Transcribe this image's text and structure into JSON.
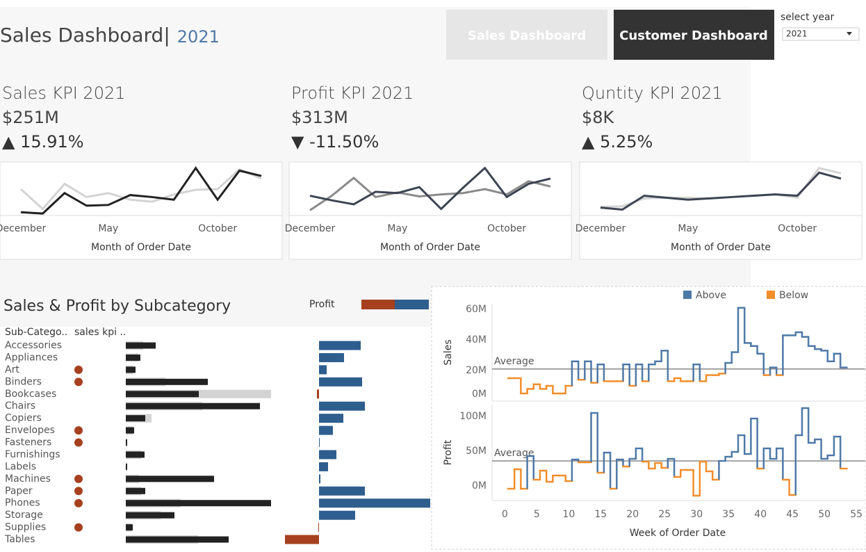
{
  "header": {
    "title": "Sales Dashboard|",
    "subtitle": "2021"
  },
  "nav": [
    "Sales Dashboard",
    "Customer Dashboard"
  ],
  "year_select": {
    "label": "select year",
    "value": "2021"
  },
  "chart_data": [
    {
      "type": "line",
      "title": "Sales KPI 2021",
      "kpi": "$251M",
      "change": "▲ 15.91%",
      "categories": [
        "December",
        null,
        null,
        null,
        "May",
        null,
        null,
        null,
        null,
        "October",
        null,
        null
      ],
      "xlabel": "Month of Order Date",
      "ylim": [
        0,
        78
      ],
      "series": [
        {
          "color": "#d3d3d3",
          "values": [
            40,
            10,
            48,
            28,
            34,
            24,
            21,
            32,
            39,
            40,
            70,
            56
          ]
        },
        {
          "color": "#222222",
          "values": [
            5,
            3,
            34,
            15,
            16,
            31,
            28,
            24,
            72,
            24,
            68,
            60
          ]
        }
      ]
    },
    {
      "type": "line",
      "title": "Profit KPI 2021",
      "kpi": "$313M",
      "change": "▼ -11.50%",
      "categories": [
        "December",
        null,
        null,
        null,
        "May",
        null,
        null,
        null,
        null,
        "October",
        null,
        null
      ],
      "xlabel": "Month of Order Date",
      "ylim": [
        0,
        78
      ],
      "series": [
        {
          "color": "#8a8a8a",
          "values": [
            8,
            30,
            57,
            28,
            35,
            29,
            32,
            34,
            40,
            32,
            52,
            44
          ]
        },
        {
          "color": "#3c4452",
          "values": [
            30,
            23,
            17,
            36,
            34,
            43,
            10,
            42,
            72,
            28,
            48,
            56
          ]
        }
      ]
    },
    {
      "type": "line",
      "title": "Quntity KPI 2021",
      "kpi": "$8K",
      "change": "▲ 5.25%",
      "categories": [
        "December",
        null,
        null,
        null,
        "May",
        null,
        null,
        null,
        null,
        "October",
        null,
        null
      ],
      "xlabel": "Month of Order Date",
      "ylim": [
        0,
        78
      ],
      "series": [
        {
          "color": "#d3d3d3",
          "values": [
            13,
            14,
            26,
            27,
            27,
            26,
            28,
            30,
            32,
            27,
            72,
            64
          ]
        },
        {
          "color": "#3c4452",
          "values": [
            12,
            9,
            30,
            27,
            24,
            26,
            28,
            30,
            32,
            30,
            65,
            56
          ]
        }
      ]
    },
    {
      "type": "subcategory",
      "title": "Sales & Profit by Subcategory",
      "column_headers": [
        "Sub-Catego..",
        "sales kpi .."
      ],
      "categories": [
        "Accessories",
        "Appliances",
        "Art",
        "Binders",
        "Bookcases",
        "Chairs",
        "Copiers",
        "Envelopes",
        "Fasteners",
        "Furnishings",
        "Labels",
        "Machines",
        "Paper",
        "Phones",
        "Storage",
        "Supplies",
        "Tables"
      ],
      "kpi_flags": [
        false,
        false,
        true,
        true,
        false,
        false,
        false,
        true,
        true,
        false,
        false,
        true,
        true,
        true,
        false,
        true,
        false
      ],
      "flag_color": "#a6401f",
      "series": [
        {
          "color": "#d3d3d3",
          "values": [
            25,
            18,
            10,
            57,
            209,
            110,
            37,
            10,
            2,
            22,
            2,
            19,
            22,
            79,
            50,
            8,
            104
          ]
        },
        {
          "color": "#222222",
          "values": [
            43,
            21,
            14,
            118,
            105,
            193,
            28,
            12,
            2,
            27,
            2,
            127,
            28,
            209,
            70,
            10,
            148
          ]
        }
      ],
      "profit": {
        "name": "Profit",
        "positive_color": "#2e5e8e",
        "negative_color": "#a6401f",
        "values": [
          60,
          36,
          11,
          62,
          -3,
          66,
          35,
          20,
          1,
          25,
          13,
          2,
          66,
          160,
          52,
          -1,
          -49
        ]
      }
    },
    {
      "type": "step",
      "xlabel": "Week of Order Date",
      "x": [
        1,
        2,
        3,
        4,
        5,
        6,
        7,
        8,
        9,
        10,
        11,
        12,
        13,
        14,
        15,
        16,
        17,
        18,
        19,
        20,
        21,
        22,
        23,
        24,
        25,
        26,
        27,
        28,
        29,
        30,
        31,
        32,
        33,
        34,
        35,
        36,
        37,
        38,
        39,
        40,
        41,
        42,
        43,
        44,
        45,
        46,
        47,
        48,
        49,
        50,
        51,
        52,
        53
      ],
      "xlim": [
        -2,
        56.4
      ],
      "xticks": [
        0,
        5,
        10,
        15,
        20,
        25,
        30,
        35,
        40,
        45,
        50,
        55
      ],
      "legend": [
        {
          "name": "Above",
          "color": "#4e79a7"
        },
        {
          "name": "Below",
          "color": "#f28e2b"
        }
      ],
      "panels": [
        {
          "ylabel": "Sales",
          "average": 21,
          "average_label": "Average",
          "ylim": [
            0,
            63.6
          ],
          "yticks": [
            {
              "value": 0,
              "label": "0M"
            },
            {
              "value": 20,
              "label": "20M"
            },
            {
              "value": 40,
              "label": "40M"
            },
            {
              "value": 60,
              "label": "60M"
            }
          ],
          "values": [
            15,
            15,
            5,
            8,
            11,
            8,
            10,
            5,
            5,
            10,
            26,
            14,
            26,
            12,
            24,
            13,
            13,
            13,
            24,
            10,
            24,
            13,
            24,
            26,
            33,
            13,
            15,
            13,
            13,
            24,
            13,
            17,
            17,
            18,
            25,
            32,
            61,
            38,
            36,
            31,
            17,
            22,
            17,
            43,
            43,
            45,
            42,
            36,
            34,
            33,
            26,
            31,
            22
          ]
        },
        {
          "ylabel": "Profit",
          "average": 36,
          "average_label": "Average",
          "ylim": [
            -21,
            117
          ],
          "yticks": [
            {
              "value": 0,
              "label": "0M"
            },
            {
              "value": 50,
              "label": "50M"
            },
            {
              "value": 100,
              "label": "100M"
            }
          ],
          "values": [
            -4,
            24,
            -4,
            43,
            9,
            22,
            6,
            15,
            15,
            7,
            38,
            34,
            34,
            105,
            19,
            48,
            -4,
            38,
            28,
            39,
            54,
            35,
            25,
            33,
            26,
            39,
            13,
            23,
            23,
            -14,
            35,
            21,
            9,
            36,
            42,
            49,
            73,
            46,
            97,
            25,
            54,
            39,
            54,
            9,
            -13,
            73,
            112,
            62,
            67,
            39,
            44,
            71,
            25
          ]
        }
      ]
    }
  ]
}
